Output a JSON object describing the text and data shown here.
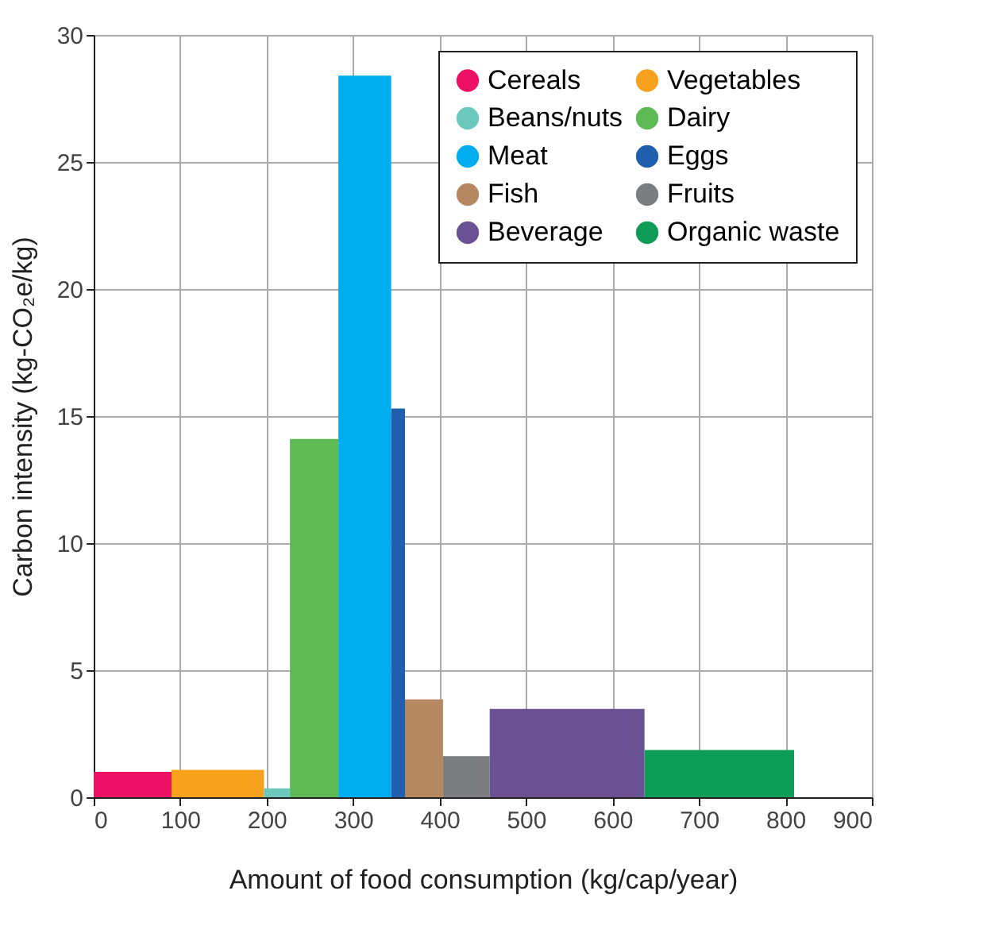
{
  "chart_data": {
    "type": "histogram",
    "xlabel": "Amount of food consumption (kg/cap/year)",
    "ylabel": "Carbon intensity (kg-CO₂e/kg)",
    "bins": [
      0,
      90,
      197,
      227,
      283,
      344,
      360,
      404,
      458,
      637,
      810
    ],
    "series": [
      {
        "name": "Cereals",
        "color": "#ec1165",
        "values": [
          1.0,
          null,
          null,
          null,
          null,
          null,
          null,
          null,
          null,
          null
        ]
      },
      {
        "name": "Vegetables",
        "color": "#f7a21d",
        "values": [
          null,
          1.08,
          null,
          null,
          null,
          null,
          null,
          null,
          null,
          null
        ]
      },
      {
        "name": "Beans/nuts",
        "color": "#6cc7bd",
        "values": [
          null,
          null,
          0.35,
          null,
          null,
          null,
          null,
          null,
          null,
          null
        ]
      },
      {
        "name": "Dairy",
        "color": "#5dba54",
        "values": [
          null,
          null,
          null,
          14.1,
          null,
          null,
          null,
          null,
          null,
          null
        ]
      },
      {
        "name": "Meat",
        "color": "#00adee",
        "values": [
          null,
          null,
          null,
          null,
          28.4,
          null,
          null,
          null,
          null,
          null
        ]
      },
      {
        "name": "Eggs",
        "color": "#1f5fae",
        "values": [
          null,
          null,
          null,
          null,
          null,
          15.3,
          null,
          null,
          null,
          null
        ]
      },
      {
        "name": "Fish",
        "color": "#b68861",
        "values": [
          null,
          null,
          null,
          null,
          null,
          null,
          3.85,
          null,
          null,
          null
        ]
      },
      {
        "name": "Fruits",
        "color": "#7c7d81",
        "values": [
          null,
          null,
          null,
          null,
          null,
          null,
          null,
          1.62,
          null,
          null
        ]
      },
      {
        "name": "Beverage",
        "color": "#6a5193",
        "values": [
          null,
          null,
          null,
          null,
          null,
          null,
          null,
          null,
          3.48,
          null
        ]
      },
      {
        "name": "Organic waste",
        "color": "#0f9c56",
        "values": [
          null,
          null,
          null,
          null,
          null,
          null,
          null,
          null,
          null,
          1.86
        ]
      }
    ],
    "xlim": [
      0,
      900
    ],
    "xticks": [
      0,
      100,
      200,
      300,
      400,
      500,
      600,
      700,
      800,
      900
    ],
    "ylim": [
      0,
      30
    ],
    "yticks": [
      0,
      5,
      10,
      15,
      20,
      25,
      30
    ],
    "grid": true,
    "legend": "top right"
  }
}
